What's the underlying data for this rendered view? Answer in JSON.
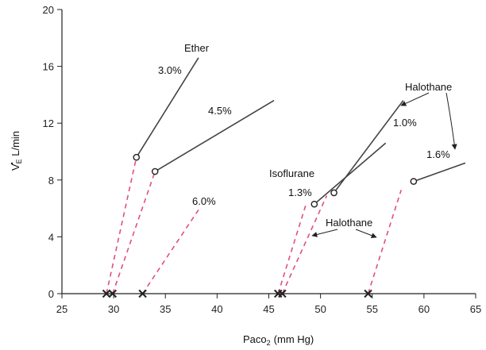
{
  "chart_data": {
    "type": "line",
    "xlabel": "Paco",
    "xlabel_sub": "2",
    "xlabel_unit": "(mm Hg)",
    "ylabel_v": "V",
    "ylabel_e": "E",
    "ylabel_unit": " L/min",
    "xlim": [
      25,
      65
    ],
    "ylim": [
      0,
      20
    ],
    "xticks": [
      25,
      30,
      35,
      40,
      45,
      50,
      55,
      60,
      65
    ],
    "yticks": [
      0,
      4,
      8,
      12,
      16,
      20
    ],
    "grid": false,
    "colors": {
      "solid": "#444444",
      "dashed": "#e0507a",
      "axis": "#222222"
    },
    "solid_series": [
      {
        "name": "3.0%",
        "points": [
          [
            32.2,
            9.6
          ],
          [
            38.2,
            16.6
          ]
        ]
      },
      {
        "name": "4.5%",
        "points": [
          [
            34.0,
            8.6
          ],
          [
            45.5,
            13.6
          ]
        ]
      },
      {
        "name": "1.3%",
        "points": [
          [
            49.4,
            6.3
          ],
          [
            56.3,
            10.6
          ]
        ]
      },
      {
        "name": "1.0%",
        "points": [
          [
            51.3,
            7.1
          ],
          [
            58.0,
            13.6
          ]
        ]
      },
      {
        "name": "1.6%",
        "points": [
          [
            59.0,
            7.9
          ],
          [
            64.0,
            9.2
          ]
        ]
      }
    ],
    "dashed_series": [
      {
        "points": [
          [
            29.3,
            0.0
          ],
          [
            32.2,
            9.6
          ]
        ]
      },
      {
        "points": [
          [
            29.9,
            0.0
          ],
          [
            34.0,
            8.6
          ]
        ]
      },
      {
        "points": [
          [
            32.8,
            0.0
          ],
          [
            38.2,
            5.9
          ]
        ]
      },
      {
        "points": [
          [
            45.9,
            0.0
          ],
          [
            48.6,
            6.3
          ]
        ]
      },
      {
        "points": [
          [
            46.3,
            0.0
          ],
          [
            50.6,
            6.9
          ]
        ]
      },
      {
        "points": [
          [
            54.6,
            0.0
          ],
          [
            57.8,
            7.3
          ]
        ]
      }
    ],
    "x_markers": [
      29.3,
      29.9,
      32.8,
      45.9,
      46.3,
      54.6
    ],
    "open_circles": [
      [
        32.2,
        9.6
      ],
      [
        34.0,
        8.6
      ],
      [
        49.4,
        6.3
      ],
      [
        51.3,
        7.1
      ],
      [
        59.0,
        7.9
      ]
    ],
    "annotations": {
      "ether": "Ether",
      "ether_30": "3.0%",
      "ether_45": "4.5%",
      "ether_60": "6.0%",
      "halothane_top": "Halothane",
      "halothane_10": "1.0%",
      "halothane_16": "1.6%",
      "isoflurane": "Isoflurane",
      "isoflurane_13": "1.3%",
      "halothane_bottom": "Halothane"
    }
  }
}
